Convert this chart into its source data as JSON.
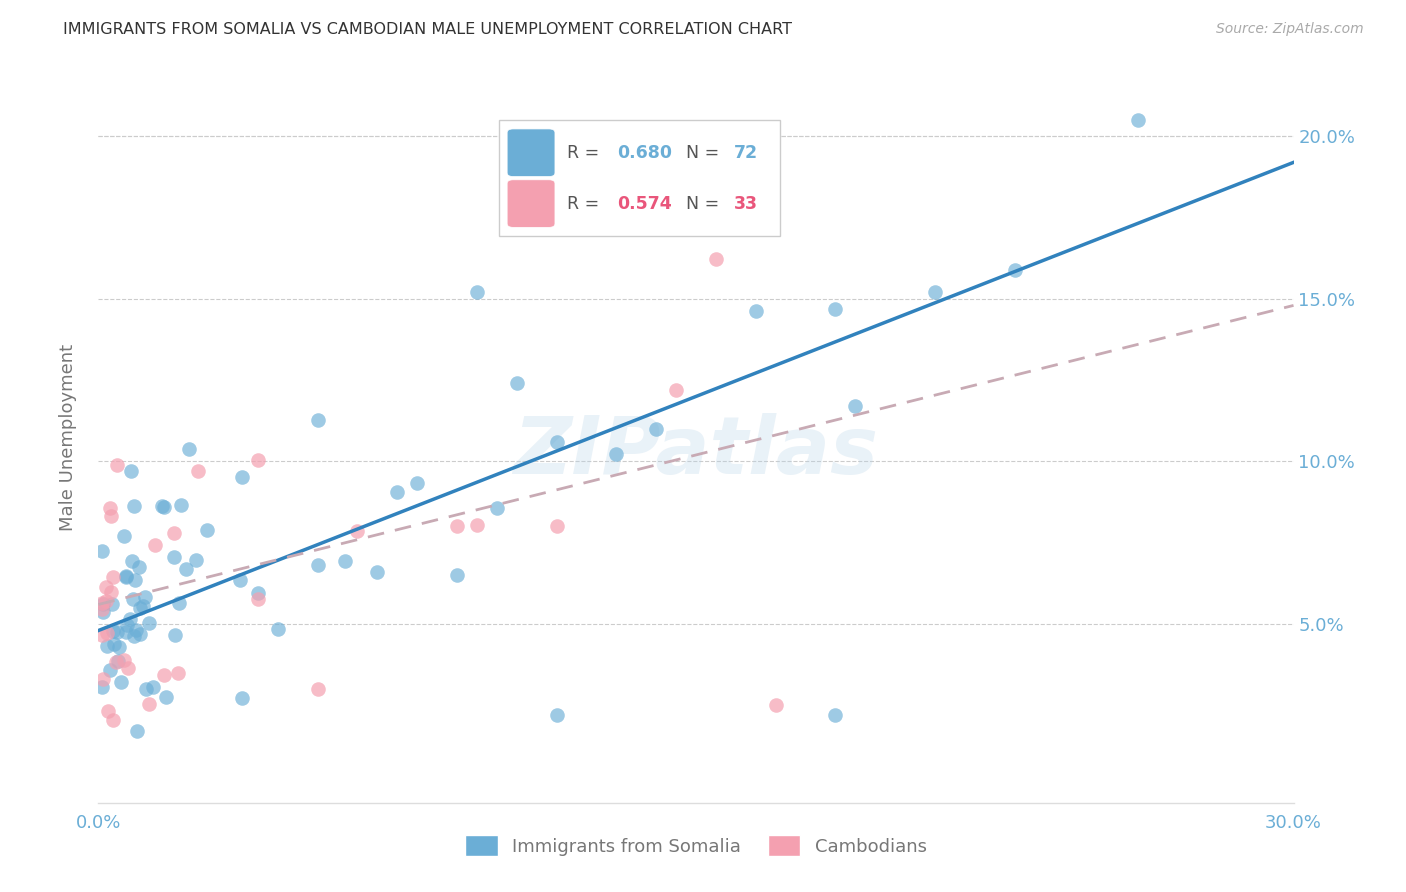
{
  "title": "IMMIGRANTS FROM SOMALIA VS CAMBODIAN MALE UNEMPLOYMENT CORRELATION CHART",
  "source": "Source: ZipAtlas.com",
  "ylabel": "Male Unemployment",
  "xlim": [
    0,
    0.3
  ],
  "ylim": [
    -0.005,
    0.22
  ],
  "yticks": [
    0.05,
    0.1,
    0.15,
    0.2
  ],
  "ytick_labels": [
    "5.0%",
    "10.0%",
    "15.0%",
    "20.0%"
  ],
  "xticks": [
    0.0,
    0.05,
    0.1,
    0.15,
    0.2,
    0.25,
    0.3
  ],
  "xtick_labels": [
    "0.0%",
    "",
    "",
    "",
    "",
    "",
    "30.0%"
  ],
  "legend_label1": "Immigrants from Somalia",
  "legend_label2": "Cambodians",
  "R1": 0.68,
  "N1": 72,
  "R2": 0.574,
  "N2": 33,
  "color1": "#6baed6",
  "color2": "#f4a0b0",
  "line1_color": "#3182bd",
  "line2_color": "#c8aab4",
  "watermark": "ZIPatlas",
  "title_color": "#333333",
  "axis_label_color": "#777777",
  "tick_color": "#6baed6",
  "background_color": "#ffffff",
  "grid_color": "#cccccc",
  "som_line_x0": 0.0,
  "som_line_y0": 0.048,
  "som_line_x1": 0.3,
  "som_line_y1": 0.192,
  "cam_line_x0": 0.0,
  "cam_line_y0": 0.056,
  "cam_line_x1": 0.3,
  "cam_line_y1": 0.148
}
